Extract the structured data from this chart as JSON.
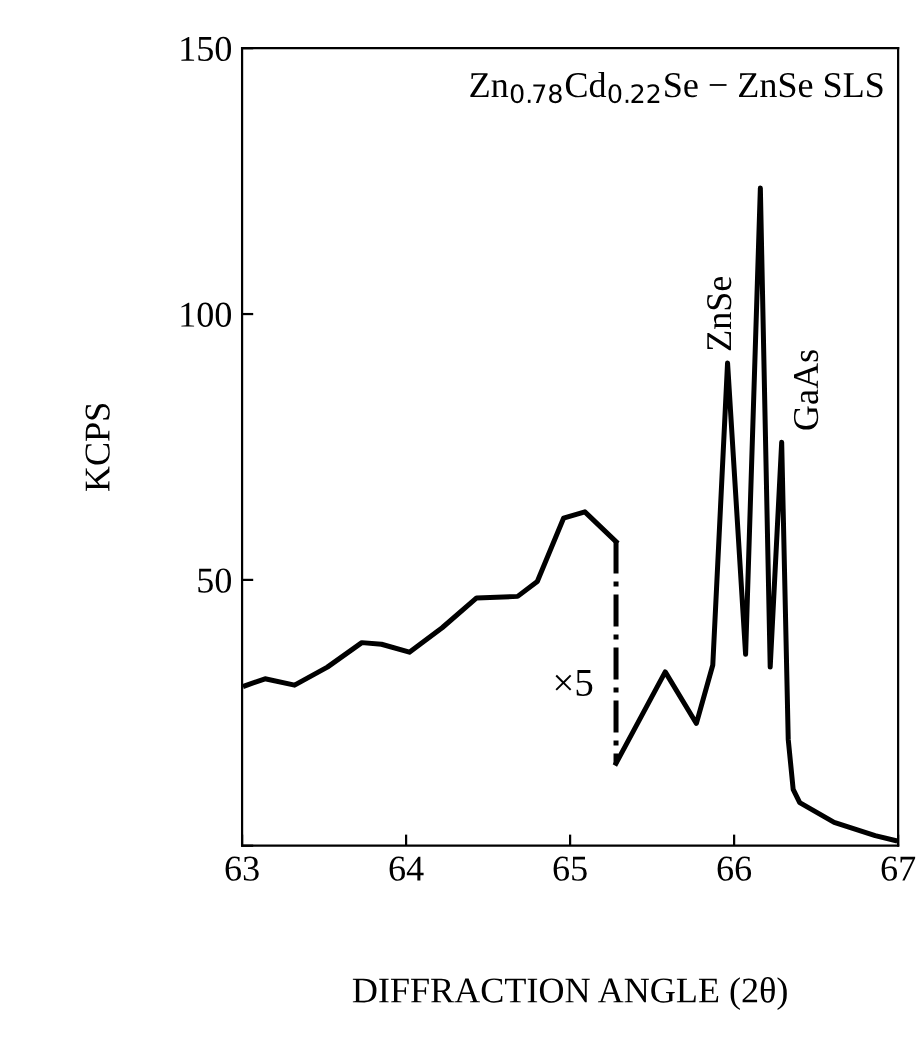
{
  "chart_data": {
    "type": "line",
    "xlabel": "DIFFRACTION ANGLE (2θ)",
    "ylabel": "KCPS",
    "xlim": [
      63,
      67
    ],
    "ylim": [
      0,
      150
    ],
    "xticks": [
      63,
      64,
      65,
      66,
      67
    ],
    "yticks": [
      {
        "value": 0,
        "label": null
      },
      50,
      100,
      150
    ],
    "grid": false,
    "legend": false,
    "series": [
      {
        "color": "#000000",
        "line_style": "solid",
        "x": [
          63.02,
          63.14,
          63.32,
          63.52,
          63.73,
          63.85,
          64.02,
          64.22,
          64.43,
          64.68,
          64.8,
          64.96,
          65.09,
          65.28
        ],
        "values": [
          30.1,
          31.4,
          30.2,
          33.6,
          38.2,
          37.9,
          36.4,
          41,
          46.6,
          46.9,
          49.7,
          61.6,
          62.8,
          57.2
        ]
      },
      {
        "color": "#000000",
        "line_style": "dashed",
        "x": [
          65.28,
          65.28
        ],
        "values": [
          57.2,
          15.5
        ]
      },
      {
        "color": "#000000",
        "line_style": "solid",
        "x": [
          65.28,
          65.58,
          65.77,
          65.87,
          65.96,
          66.07,
          66.16,
          66.22,
          66.29,
          66.33,
          66.36,
          66.4,
          66.61,
          66.86,
          66.98
        ],
        "values": [
          15.5,
          32.7,
          23,
          34,
          90.8,
          36,
          123.7,
          33.6,
          75.9,
          20,
          10.6,
          8.1,
          4.4,
          1.9,
          1.0
        ]
      }
    ],
    "annotations": [
      {
        "text": "ZnSe",
        "x": 65.96,
        "y": 90.8
      },
      {
        "text": "GaAs",
        "x": 66.29,
        "y": 75.9
      },
      {
        "text": "×5",
        "x": 65.28,
        "y": 30
      }
    ],
    "title": "Zn$_{0.78}$Cd$_{0.22}$Se − ZnSe SLS"
  }
}
